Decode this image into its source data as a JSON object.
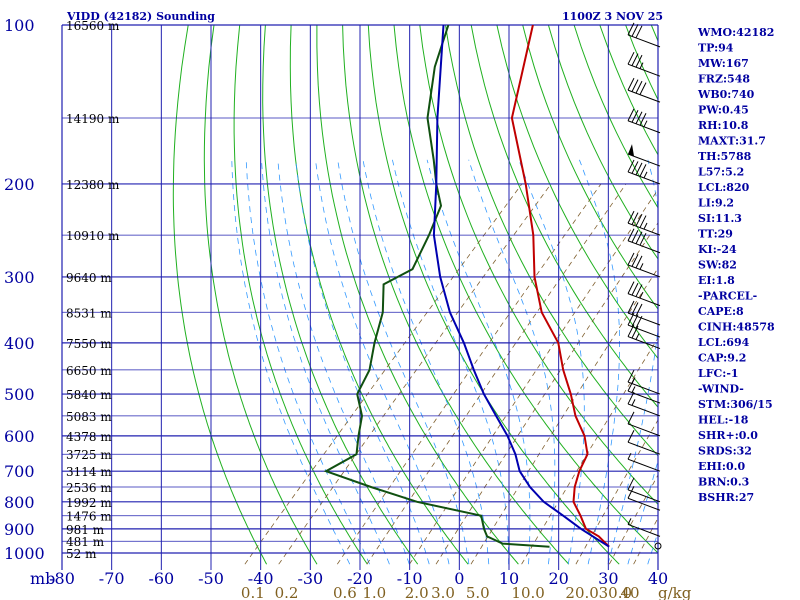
{
  "header": {
    "title": "VIDD (42182) Sounding",
    "time": "1100Z  3 NOV 25"
  },
  "stats": [
    "WMO:42182",
    "TP:94",
    "MW:167",
    "FRZ:548",
    "WB0:740",
    "PW:0.45",
    "RH:10.8",
    "MAXT:31.7",
    "TH:5788",
    "L57:5.2",
    "LCL:820",
    "LI:9.2",
    "SI:11.3",
    "TT:29",
    "KI:-24",
    "SW:82",
    "EI:1.8",
    "-PARCEL-",
    "CAPE:8",
    "CINH:48578",
    "LCL:694",
    "CAP:9.2",
    "LFC:-1",
    "-WIND-",
    "STM:306/15",
    "HEL:-18",
    "SHR+:0.0",
    "SRDS:32",
    "EHI:0.0",
    "BRN:0.3",
    "BSHR:27"
  ],
  "colors": {
    "isotherm": "#2020b0",
    "isobar": "#2020b0",
    "dry_adiabat": "#20b020",
    "moist_adiabat": "#3399ff",
    "mixing_ratio": "#806030",
    "temperature": "#c00000",
    "dewpoint": "#105010",
    "parcel": "#0000b0",
    "label_blue": "#0000a0",
    "label_brown": "#806020"
  },
  "chart_data": {
    "type": "line",
    "title": "VIDD (42182) Sounding",
    "xlabel": "",
    "ylabel": "mb",
    "xlim": [
      -80,
      40
    ],
    "ylim": [
      1000,
      100
    ],
    "pressure_ticks": [
      100,
      200,
      300,
      400,
      500,
      600,
      700,
      800,
      900,
      1000
    ],
    "temperature_ticks": [
      -80,
      -70,
      -60,
      -50,
      -40,
      -30,
      -20,
      -10,
      0,
      10,
      20,
      30,
      40
    ],
    "temperature_tick_labels": [
      "-80",
      "-70",
      "-60",
      "-50",
      "-40",
      "-30",
      "-20",
      "-10",
      "0",
      "10",
      "20",
      "30",
      "40"
    ],
    "mixing_ratio_labels": [
      {
        "value": 0.1,
        "label": "0.1"
      },
      {
        "value": 0.2,
        "label": "0.2"
      },
      {
        "value": 0.6,
        "label": "0.6"
      },
      {
        "value": 1.0,
        "label": "1.0"
      },
      {
        "value": 2.0,
        "label": "2.0"
      },
      {
        "value": 3.0,
        "label": "3.0"
      },
      {
        "value": 5.0,
        "label": "5.0"
      },
      {
        "value": 10.0,
        "label": "10.0"
      },
      {
        "value": 20.0,
        "label": "20.0"
      },
      {
        "value": 30.0,
        "label": "30.0"
      },
      {
        "value": 40.0,
        "label": "40"
      }
    ],
    "mixing_ratio_unit": "g/kg",
    "height_labels": [
      {
        "p": 100,
        "label": "16560 m"
      },
      {
        "p": 150,
        "label": "14190 m"
      },
      {
        "p": 200,
        "label": "12380 m"
      },
      {
        "p": 250,
        "label": "10910 m"
      },
      {
        "p": 300,
        "label": "9640 m"
      },
      {
        "p": 350,
        "label": "8531 m"
      },
      {
        "p": 400,
        "label": "7550 m"
      },
      {
        "p": 450,
        "label": "6650 m"
      },
      {
        "p": 500,
        "label": "5840 m"
      },
      {
        "p": 550,
        "label": "5083 m"
      },
      {
        "p": 600,
        "label": "4378 m"
      },
      {
        "p": 650,
        "label": "3725 m"
      },
      {
        "p": 700,
        "label": "3114 m"
      },
      {
        "p": 750,
        "label": "2536 m"
      },
      {
        "p": 800,
        "label": "1992 m"
      },
      {
        "p": 850,
        "label": "1476 m"
      },
      {
        "p": 900,
        "label": "981 m"
      },
      {
        "p": 950,
        "label": "481 m"
      },
      {
        "p": 1000,
        "label": "52 m"
      }
    ],
    "series": [
      {
        "key": "temperature",
        "points": [
          [
            973,
            29.0
          ],
          [
            930,
            25.0
          ],
          [
            900,
            21.0
          ],
          [
            850,
            17.5
          ],
          [
            800,
            13.5
          ],
          [
            750,
            11.0
          ],
          [
            700,
            9.0
          ],
          [
            650,
            7.5
          ],
          [
            600,
            3.5
          ],
          [
            550,
            -2.0
          ],
          [
            500,
            -7.0
          ],
          [
            450,
            -13.0
          ],
          [
            400,
            -19.0
          ],
          [
            350,
            -28.0
          ],
          [
            300,
            -36.0
          ],
          [
            250,
            -44.0
          ],
          [
            200,
            -55.0
          ],
          [
            150,
            -70.0
          ],
          [
            100,
            -83.0
          ]
        ]
      },
      {
        "key": "dewpoint",
        "points": [
          [
            973,
            17.0
          ],
          [
            960,
            7.0
          ],
          [
            930,
            2.5
          ],
          [
            900,
            0.5
          ],
          [
            850,
            -2.5
          ],
          [
            800,
            -18.0
          ],
          [
            750,
            -30.0
          ],
          [
            700,
            -42.0
          ],
          [
            650,
            -39.0
          ],
          [
            600,
            -42.0
          ],
          [
            550,
            -45.0
          ],
          [
            500,
            -50.0
          ],
          [
            450,
            -52.0
          ],
          [
            400,
            -56.0
          ],
          [
            350,
            -60.0
          ],
          [
            310,
            -65.0
          ],
          [
            290,
            -62.0
          ],
          [
            250,
            -65.0
          ],
          [
            220,
            -68.0
          ],
          [
            200,
            -73.0
          ],
          [
            180,
            -78.0
          ],
          [
            150,
            -87.0
          ],
          [
            120,
            -95.0
          ],
          [
            100,
            -100.0
          ]
        ]
      },
      {
        "key": "parcel",
        "points": [
          [
            973,
            29.0
          ],
          [
            900,
            20.0
          ],
          [
            850,
            14.0
          ],
          [
            800,
            7.5
          ],
          [
            750,
            2.0
          ],
          [
            700,
            -3.0
          ],
          [
            650,
            -7.0
          ],
          [
            600,
            -12.0
          ],
          [
            550,
            -18.0
          ],
          [
            500,
            -24.5
          ],
          [
            450,
            -31.0
          ],
          [
            400,
            -38.0
          ],
          [
            350,
            -46.5
          ],
          [
            300,
            -55.0
          ],
          [
            250,
            -64.0
          ],
          [
            200,
            -73.0
          ],
          [
            150,
            -85.0
          ],
          [
            100,
            -101.0
          ]
        ]
      }
    ]
  },
  "winds": [
    {
      "p": 110,
      "spd": 30
    },
    {
      "p": 125,
      "spd": 35
    },
    {
      "p": 140,
      "spd": 40
    },
    {
      "p": 160,
      "spd": 45
    },
    {
      "p": 185,
      "spd": 50
    },
    {
      "p": 200,
      "spd": 45
    },
    {
      "p": 250,
      "spd": 45
    },
    {
      "p": 270,
      "spd": 40
    },
    {
      "p": 300,
      "spd": 35
    },
    {
      "p": 340,
      "spd": 35
    },
    {
      "p": 370,
      "spd": 30
    },
    {
      "p": 390,
      "spd": 30
    },
    {
      "p": 410,
      "spd": 25
    },
    {
      "p": 500,
      "spd": 15
    },
    {
      "p": 520,
      "spd": 15
    },
    {
      "p": 550,
      "spd": 15
    },
    {
      "p": 600,
      "spd": 10
    },
    {
      "p": 650,
      "spd": 10
    },
    {
      "p": 700,
      "spd": 5
    },
    {
      "p": 800,
      "spd": 10
    },
    {
      "p": 830,
      "spd": 10
    },
    {
      "p": 930,
      "spd": 5
    },
    {
      "p": 970,
      "spd": 0
    }
  ]
}
